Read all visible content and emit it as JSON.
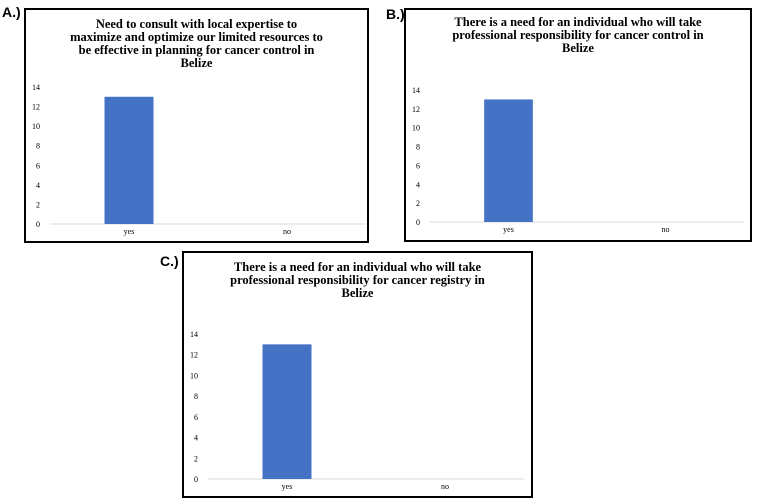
{
  "panels": [
    {
      "label": "A.)",
      "title": "Need to consult with local expertise to maximize and optimize our limited resources to be effective in planning for cancer control in Belize"
    },
    {
      "label": "B.)",
      "title": "There is a need for an individual who will take professional responsibility for cancer control in Belize"
    },
    {
      "label": "C.)",
      "title": "There is a need for an individual who will take professional responsibility for cancer registry in Belize"
    }
  ],
  "chart_data": [
    {
      "type": "bar",
      "title": "Need to consult with local expertise to maximize and optimize our limited resources to be effective in planning for cancer control in Belize",
      "categories": [
        "yes",
        "no"
      ],
      "values": [
        13,
        0
      ],
      "ylim": [
        0,
        14
      ],
      "yticks": [
        "0",
        "2",
        "4",
        "6",
        "8",
        "10",
        "12",
        "14"
      ],
      "bar_color": "#4472c4",
      "grid": false
    },
    {
      "type": "bar",
      "title": "There is a need for an individual who will take professional responsibility for cancer control in Belize",
      "categories": [
        "yes",
        "no"
      ],
      "values": [
        13,
        0
      ],
      "ylim": [
        0,
        14
      ],
      "yticks": [
        "0",
        "2",
        "4",
        "6",
        "8",
        "10",
        "12",
        "14"
      ],
      "bar_color": "#4472c4",
      "grid": false
    },
    {
      "type": "bar",
      "title": "There is a need for an individual who will take professional responsibility for cancer registry in Belize",
      "categories": [
        "yes",
        "no"
      ],
      "values": [
        13,
        0
      ],
      "ylim": [
        0,
        14
      ],
      "yticks": [
        "0",
        "2",
        "4",
        "6",
        "8",
        "10",
        "12",
        "14"
      ],
      "bar_color": "#4472c4",
      "grid": false
    }
  ]
}
